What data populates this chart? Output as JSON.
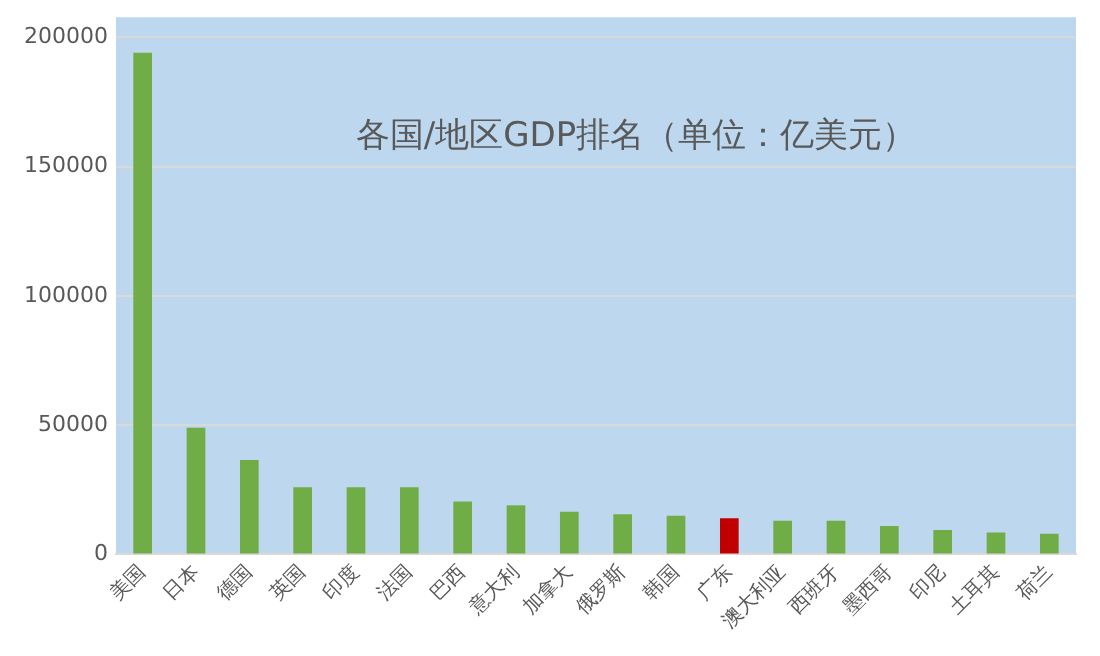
{
  "chart_data": {
    "type": "bar",
    "title": "各国/地区GDP排名（单位：亿美元）",
    "categories": [
      "美国",
      "日本",
      "德国",
      "英国",
      "印度",
      "法国",
      "巴西",
      "意大利",
      "加拿大",
      "俄罗斯",
      "韩国",
      "广东",
      "澳大利亚",
      "西班牙",
      "墨西哥",
      "印尼",
      "土耳其",
      "荷兰"
    ],
    "values": [
      194000,
      49000,
      36500,
      26000,
      26000,
      26000,
      20500,
      19000,
      16500,
      15500,
      15000,
      14000,
      13000,
      13000,
      11000,
      9500,
      8500,
      8000
    ],
    "colors": [
      "#70ad47",
      "#70ad47",
      "#70ad47",
      "#70ad47",
      "#70ad47",
      "#70ad47",
      "#70ad47",
      "#70ad47",
      "#70ad47",
      "#70ad47",
      "#70ad47",
      "#c00000",
      "#70ad47",
      "#70ad47",
      "#70ad47",
      "#70ad47",
      "#70ad47",
      "#70ad47"
    ],
    "ylim": [
      0,
      200000
    ],
    "yticks": [
      0,
      50000,
      100000,
      150000,
      200000
    ],
    "grid": "y",
    "legend": false
  }
}
